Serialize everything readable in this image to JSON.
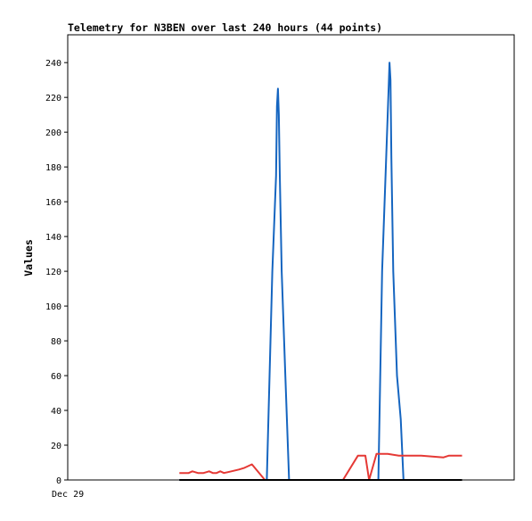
{
  "chart_data": {
    "type": "line",
    "title": "Telemetry for N3BEN over last 240 hours (44 points)",
    "xlabel": "",
    "ylabel": "Values",
    "x_tick_labels": [
      "Dec 29"
    ],
    "xlim": [
      0,
      240
    ],
    "ylim": [
      0,
      256
    ],
    "yticks": [
      0,
      20,
      40,
      60,
      80,
      100,
      120,
      140,
      160,
      180,
      200,
      220,
      240
    ],
    "grid": false,
    "legend": "none",
    "series": [
      {
        "color": "#1565c0",
        "x": [
          60,
          98,
          107,
          110,
          112,
          112.5,
          113,
          113.5,
          114,
          115,
          117,
          119,
          120,
          122,
          146,
          167,
          169,
          171,
          172.5,
          173,
          173.5,
          174,
          175,
          177,
          179,
          180.5,
          182,
          212
        ],
        "y": [
          0,
          0,
          0,
          120,
          175,
          215,
          225,
          210,
          175,
          120,
          60,
          0,
          0,
          0,
          0,
          0,
          120,
          180,
          225,
          240,
          230,
          185,
          120,
          60,
          35,
          0,
          0,
          0
        ]
      },
      {
        "color": "#e53935",
        "x": [
          60,
          65,
          67,
          70,
          73,
          76,
          78,
          80,
          82,
          84,
          88,
          92,
          95,
          99,
          106,
          148,
          156,
          160,
          162,
          166,
          172,
          178,
          182,
          186,
          190,
          202,
          205,
          212
        ],
        "y": [
          4,
          4,
          5,
          4,
          4,
          5,
          4,
          4,
          5,
          4,
          5,
          6,
          7,
          9,
          0,
          0,
          14,
          14,
          0,
          15,
          15,
          14,
          14,
          14,
          14,
          13,
          14,
          14
        ]
      }
    ]
  }
}
